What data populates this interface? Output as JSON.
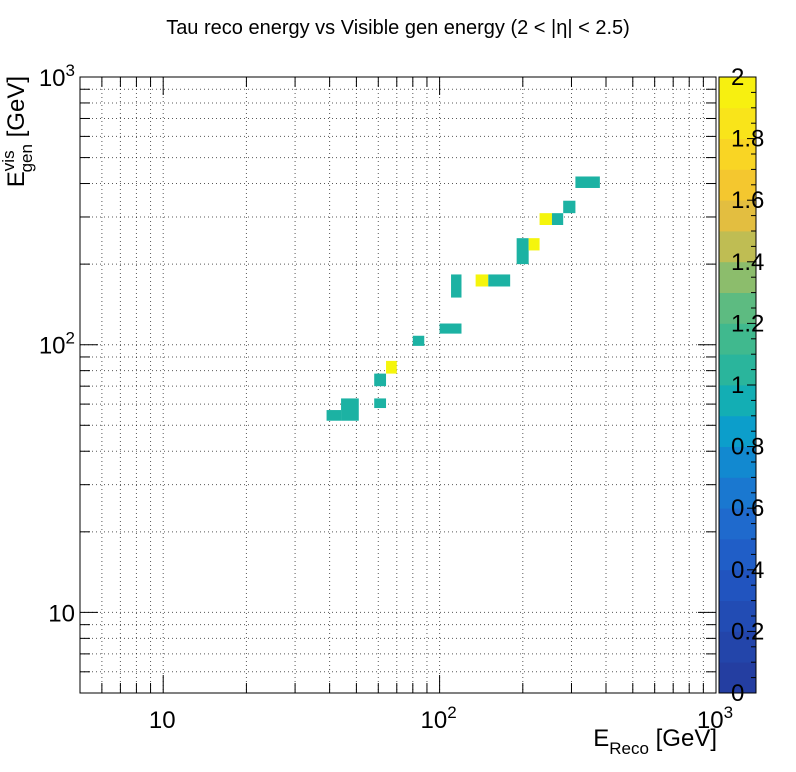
{
  "chart_data": {
    "type": "heatmap",
    "title": "Tau reco energy vs Visible gen energy (2 < |η| < 2.5)",
    "xlabel": {
      "main": "E",
      "sub": "Reco",
      "unit": " [GeV]"
    },
    "ylabel": {
      "main": "E",
      "sup": "vis",
      "sub": "gen",
      "unit": " [GeV]"
    },
    "x_axis": {
      "scale": "log",
      "range": [
        5,
        1000
      ],
      "tick_labels": [
        {
          "value": 10,
          "mantissa": "10",
          "exp": ""
        },
        {
          "value": 100,
          "mantissa": "10",
          "exp": "2"
        },
        {
          "value": 1000,
          "mantissa": "10",
          "exp": "3"
        }
      ]
    },
    "y_axis": {
      "scale": "log",
      "range": [
        5,
        1000
      ],
      "tick_labels": [
        {
          "value": 10,
          "mantissa": "10",
          "exp": ""
        },
        {
          "value": 100,
          "mantissa": "10",
          "exp": "2"
        },
        {
          "value": 1000,
          "mantissa": "10",
          "exp": "3"
        }
      ]
    },
    "grid": true,
    "colorbar": {
      "min": 0,
      "max": 2,
      "tick_labels": [
        "0",
        "0.2",
        "0.4",
        "0.6",
        "0.8",
        "1",
        "1.2",
        "1.4",
        "1.6",
        "1.8",
        "2"
      ]
    },
    "cells": [
      {
        "x": [
          39,
          44
        ],
        "y": [
          52,
          57
        ],
        "z": 1
      },
      {
        "x": [
          44,
          51
        ],
        "y": [
          52,
          63
        ],
        "z": 1
      },
      {
        "x": [
          58,
          64
        ],
        "y": [
          58,
          63
        ],
        "z": 1
      },
      {
        "x": [
          58,
          64
        ],
        "y": [
          70,
          78
        ],
        "z": 1
      },
      {
        "x": [
          64,
          70
        ],
        "y": [
          78,
          87
        ],
        "z": 2
      },
      {
        "x": [
          80,
          88
        ],
        "y": [
          99,
          108
        ],
        "z": 1
      },
      {
        "x": [
          100,
          120
        ],
        "y": [
          110,
          120
        ],
        "z": 1
      },
      {
        "x": [
          110,
          120
        ],
        "y": [
          150,
          183
        ],
        "z": 1
      },
      {
        "x": [
          135,
          150
        ],
        "y": [
          165,
          183
        ],
        "z": 2
      },
      {
        "x": [
          150,
          180
        ],
        "y": [
          165,
          183
        ],
        "z": 1
      },
      {
        "x": [
          190,
          210
        ],
        "y": [
          200,
          250
        ],
        "z": 1
      },
      {
        "x": [
          210,
          230
        ],
        "y": [
          225,
          250
        ],
        "z": 2
      },
      {
        "x": [
          230,
          255
        ],
        "y": [
          280,
          310
        ],
        "z": 2
      },
      {
        "x": [
          255,
          280
        ],
        "y": [
          280,
          310
        ],
        "z": 1
      },
      {
        "x": [
          280,
          310
        ],
        "y": [
          310,
          345
        ],
        "z": 1
      },
      {
        "x": [
          310,
          380
        ],
        "y": [
          385,
          425
        ],
        "z": 1
      }
    ]
  }
}
